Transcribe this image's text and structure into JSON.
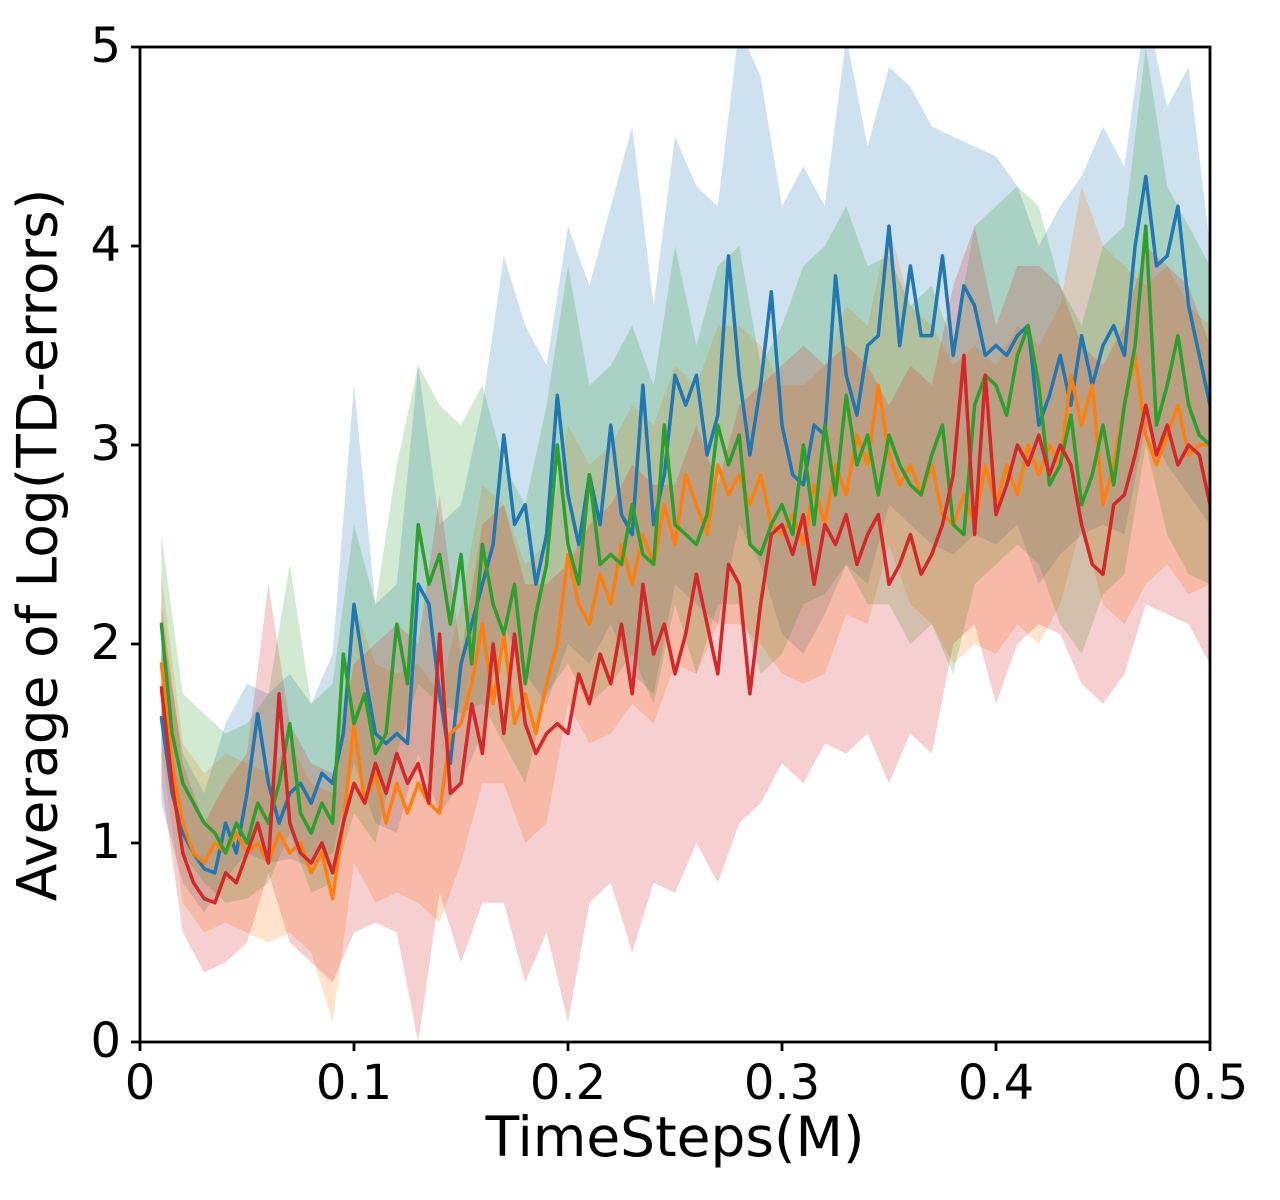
{
  "figure": {
    "background_color": "#ffffff",
    "spine_color": "#000000",
    "tick_color": "#000000"
  },
  "chart_data": {
    "type": "line",
    "title": "",
    "xlabel": "TimeSteps(M)",
    "ylabel": "Average of Log(TD-errors)",
    "xlim": [
      0,
      0.5
    ],
    "ylim": [
      0,
      5
    ],
    "xticks": [
      0,
      0.1,
      0.2,
      0.3,
      0.4,
      0.5
    ],
    "xtick_labels": [
      "0",
      "0.1",
      "0.2",
      "0.3",
      "0.4",
      "0.5"
    ],
    "yticks": [
      0,
      1,
      2,
      3,
      4,
      5
    ],
    "ytick_labels": [
      "0",
      "1",
      "2",
      "3",
      "4",
      "5"
    ],
    "grid": false,
    "legend": "none",
    "x_start": 0.01,
    "x_step": 0.005,
    "band_x_start": 0.01,
    "band_x_step": 0.01,
    "band_alpha": 0.22,
    "series": [
      {
        "name": "series-blue",
        "color": "#1f77b4",
        "mean": [
          1.63,
          1.25,
          1.05,
          0.95,
          0.87,
          0.85,
          1.1,
          0.95,
          1.25,
          1.65,
          1.3,
          1.1,
          1.25,
          1.3,
          1.2,
          1.35,
          1.3,
          1.55,
          2.2,
          1.85,
          1.55,
          1.5,
          1.55,
          1.5,
          2.3,
          2.2,
          1.75,
          1.4,
          1.9,
          2.1,
          2.3,
          2.5,
          3.05,
          2.6,
          2.7,
          2.3,
          2.55,
          3.25,
          2.75,
          2.5,
          2.85,
          2.6,
          3.1,
          2.65,
          2.55,
          3.3,
          2.6,
          2.85,
          3.35,
          3.2,
          3.35,
          2.95,
          3.15,
          3.95,
          3.35,
          2.95,
          3.3,
          3.77,
          3.1,
          2.85,
          2.8,
          3.1,
          3.05,
          3.85,
          3.35,
          3.15,
          3.5,
          3.55,
          4.1,
          3.5,
          3.9,
          3.55,
          3.55,
          3.95,
          3.45,
          3.8,
          3.7,
          3.45,
          3.5,
          3.45,
          3.55,
          3.6,
          3.1,
          3.25,
          3.45,
          3.2,
          3.55,
          3.3,
          3.5,
          3.6,
          3.45,
          4.0,
          4.35,
          3.9,
          3.95,
          4.2,
          3.7,
          3.45,
          3.2
        ],
        "band_low": [
          1.2,
          0.8,
          0.65,
          0.82,
          0.95,
          0.9,
          0.92,
          0.88,
          0.95,
          1.4,
          1.1,
          1.05,
          1.45,
          1.15,
          1.3,
          1.55,
          2.1,
          1.85,
          1.7,
          2.0,
          1.9,
          2.1,
          1.85,
          1.75,
          2.3,
          2.2,
          2.1,
          2.6,
          2.4,
          2.05,
          1.95,
          2.15,
          2.4,
          2.3,
          2.7,
          2.6,
          2.5,
          2.45,
          2.55,
          2.5,
          2.6,
          2.3,
          2.45,
          2.55,
          2.6,
          2.55,
          3.1,
          2.9,
          2.75,
          2.6
        ],
        "band_high": [
          2.1,
          1.45,
          1.25,
          1.6,
          1.8,
          1.75,
          1.85,
          1.7,
          1.95,
          3.3,
          2.2,
          2.3,
          3.4,
          2.6,
          2.7,
          3.2,
          3.95,
          3.6,
          3.4,
          4.1,
          3.8,
          4.2,
          4.6,
          3.7,
          4.55,
          4.3,
          4.2,
          5.1,
          4.85,
          4.2,
          4.4,
          4.2,
          5.05,
          4.5,
          4.9,
          4.8,
          4.6,
          4.55,
          4.5,
          4.45,
          4.3,
          4.0,
          4.2,
          4.35,
          4.6,
          4.4,
          5.2,
          4.7,
          4.9,
          4.0
        ]
      },
      {
        "name": "series-orange",
        "color": "#ff7f0e",
        "mean": [
          1.9,
          1.4,
          1.1,
          0.95,
          0.9,
          1.0,
          0.95,
          1.05,
          0.95,
          1.0,
          0.9,
          1.05,
          0.95,
          1.0,
          0.85,
          0.95,
          0.72,
          1.1,
          1.6,
          1.2,
          1.35,
          1.1,
          1.3,
          1.15,
          1.3,
          1.2,
          1.15,
          1.55,
          1.6,
          1.8,
          2.1,
          1.7,
          2.05,
          1.6,
          1.75,
          1.55,
          1.8,
          2.0,
          2.45,
          2.2,
          2.1,
          2.35,
          2.2,
          2.5,
          2.3,
          2.55,
          2.4,
          2.7,
          2.5,
          2.85,
          2.7,
          2.55,
          2.9,
          2.75,
          2.85,
          2.7,
          2.85,
          2.6,
          2.55,
          2.65,
          2.5,
          2.8,
          2.6,
          2.9,
          2.75,
          3.05,
          2.9,
          3.3,
          2.95,
          2.8,
          2.9,
          2.75,
          2.9,
          2.65,
          2.6,
          2.75,
          2.6,
          2.9,
          2.7,
          2.9,
          2.75,
          3.0,
          2.85,
          3.0,
          2.9,
          3.35,
          3.1,
          3.3,
          2.7,
          2.9,
          3.2,
          3.45,
          3.05,
          2.9,
          3.05,
          3.2,
          2.95,
          3.0,
          3.0
        ],
        "band_low": [
          1.45,
          0.7,
          0.55,
          0.6,
          0.55,
          0.5,
          0.55,
          0.45,
          0.1,
          0.9,
          0.7,
          0.75,
          0.7,
          0.6,
          0.9,
          1.3,
          1.3,
          1.0,
          1.1,
          1.7,
          1.5,
          1.55,
          1.7,
          1.6,
          1.9,
          1.85,
          2.1,
          2.1,
          2.0,
          1.85,
          1.8,
          1.85,
          2.15,
          2.1,
          2.5,
          2.2,
          2.1,
          1.9,
          2.0,
          1.95,
          2.1,
          2.0,
          2.2,
          2.6,
          2.2,
          2.1,
          2.3,
          2.4,
          2.25,
          2.3
        ],
        "band_high": [
          2.35,
          1.5,
          1.35,
          1.45,
          1.4,
          1.35,
          1.5,
          1.3,
          1.25,
          2.2,
          1.9,
          1.85,
          1.9,
          1.75,
          2.2,
          2.8,
          2.7,
          2.4,
          2.5,
          3.1,
          2.9,
          3.0,
          3.2,
          3.1,
          3.4,
          3.3,
          3.6,
          3.6,
          3.5,
          3.3,
          3.3,
          3.4,
          3.7,
          3.6,
          4.1,
          3.7,
          3.6,
          3.4,
          3.5,
          3.4,
          3.6,
          3.5,
          3.7,
          4.3,
          4.0,
          3.9,
          3.8,
          3.9,
          3.7,
          3.6
        ]
      },
      {
        "name": "series-green",
        "color": "#2ca02c",
        "mean": [
          2.1,
          1.55,
          1.3,
          1.2,
          1.1,
          1.05,
          0.95,
          1.1,
          1.0,
          1.2,
          1.1,
          1.3,
          1.6,
          1.15,
          1.05,
          1.2,
          1.1,
          1.95,
          1.6,
          1.75,
          1.45,
          1.55,
          2.1,
          1.8,
          2.6,
          2.3,
          2.45,
          2.1,
          2.45,
          1.9,
          2.5,
          2.2,
          2.05,
          2.3,
          1.8,
          2.15,
          2.4,
          3.0,
          2.5,
          2.3,
          2.85,
          2.4,
          2.45,
          2.4,
          2.7,
          2.45,
          2.4,
          3.1,
          2.6,
          2.55,
          2.5,
          2.65,
          3.1,
          2.9,
          3.05,
          2.5,
          2.45,
          2.6,
          2.7,
          2.55,
          3.0,
          2.6,
          3.1,
          2.75,
          3.25,
          2.9,
          3.05,
          2.75,
          3.05,
          2.9,
          2.8,
          2.75,
          2.95,
          3.1,
          2.6,
          2.55,
          3.2,
          3.35,
          3.3,
          3.15,
          3.45,
          3.6,
          3.3,
          2.8,
          2.9,
          3.15,
          2.7,
          2.85,
          3.1,
          2.8,
          3.2,
          3.5,
          4.1,
          3.1,
          3.3,
          3.55,
          3.2,
          3.05,
          3.0
        ],
        "band_low": [
          1.6,
          0.95,
          0.8,
          0.7,
          0.72,
          0.8,
          1.05,
          0.75,
          0.8,
          1.15,
          1.0,
          1.45,
          1.8,
          1.7,
          1.65,
          1.7,
          1.5,
          1.3,
          1.75,
          1.9,
          1.7,
          1.8,
          1.95,
          1.7,
          2.2,
          1.85,
          2.2,
          2.2,
          1.85,
          1.95,
          2.2,
          2.25,
          2.4,
          2.2,
          2.2,
          2.0,
          2.1,
          1.85,
          2.3,
          2.4,
          2.5,
          2.4,
          2.1,
          1.95,
          2.25,
          2.35,
          3.0,
          2.55,
          2.35,
          2.3
        ],
        "band_high": [
          2.55,
          1.75,
          1.65,
          1.55,
          1.6,
          1.75,
          2.4,
          1.7,
          1.8,
          2.6,
          2.2,
          2.9,
          3.4,
          3.2,
          3.1,
          3.3,
          2.9,
          2.7,
          3.2,
          3.9,
          3.3,
          3.4,
          3.6,
          3.3,
          4.0,
          3.5,
          3.9,
          4.0,
          3.4,
          3.6,
          3.9,
          4.0,
          4.2,
          3.9,
          3.95,
          3.7,
          3.8,
          3.5,
          4.1,
          4.2,
          4.3,
          4.2,
          3.8,
          3.6,
          4.0,
          4.1,
          5.0,
          4.3,
          4.1,
          3.9
        ]
      },
      {
        "name": "series-red",
        "color": "#d62728",
        "mean": [
          1.78,
          1.3,
          0.95,
          0.8,
          0.72,
          0.7,
          0.85,
          0.8,
          0.95,
          1.1,
          0.9,
          1.75,
          1.1,
          0.95,
          0.9,
          1.0,
          0.85,
          1.1,
          1.3,
          1.2,
          1.4,
          1.25,
          1.45,
          1.3,
          1.4,
          1.2,
          2.05,
          1.25,
          1.3,
          1.7,
          1.45,
          2.0,
          1.55,
          2.05,
          1.6,
          1.45,
          1.55,
          1.6,
          1.55,
          1.85,
          1.7,
          1.95,
          1.8,
          2.1,
          1.75,
          2.3,
          1.95,
          2.1,
          1.85,
          2.05,
          2.35,
          2.1,
          1.85,
          2.4,
          2.3,
          1.75,
          2.2,
          2.55,
          2.6,
          2.45,
          2.65,
          2.3,
          2.6,
          2.5,
          2.65,
          2.4,
          2.55,
          2.65,
          2.3,
          2.4,
          2.55,
          2.35,
          2.45,
          2.6,
          2.85,
          3.45,
          2.55,
          3.35,
          2.65,
          2.8,
          3.0,
          2.9,
          3.05,
          2.85,
          3.0,
          2.9,
          2.6,
          2.4,
          2.35,
          2.7,
          2.75,
          2.95,
          3.2,
          2.95,
          3.1,
          2.9,
          3.0,
          2.95,
          2.7
        ],
        "band_low": [
          1.3,
          0.55,
          0.35,
          0.4,
          0.5,
          0.85,
          0.5,
          0.4,
          0.3,
          0.55,
          0.6,
          0.55,
          0.0,
          0.75,
          0.4,
          0.7,
          0.7,
          0.3,
          0.55,
          0.1,
          0.7,
          0.8,
          0.45,
          0.8,
          0.75,
          1.0,
          0.8,
          1.1,
          1.2,
          1.4,
          1.3,
          1.5,
          1.45,
          1.55,
          1.3,
          1.55,
          1.45,
          2.0,
          2.1,
          1.7,
          2.0,
          2.1,
          2.05,
          1.8,
          1.7,
          1.85,
          2.2,
          2.15,
          2.1,
          1.9
        ],
        "band_high": [
          2.2,
          1.4,
          1.1,
          1.3,
          1.45,
          2.3,
          1.6,
          1.4,
          1.35,
          1.9,
          2.0,
          2.1,
          2.0,
          2.75,
          1.95,
          2.6,
          2.7,
          2.3,
          2.3,
          2.4,
          2.6,
          2.7,
          2.9,
          2.8,
          2.8,
          3.1,
          2.8,
          3.2,
          3.3,
          3.4,
          3.5,
          3.4,
          3.5,
          3.4,
          3.2,
          3.4,
          3.3,
          3.8,
          4.1,
          3.6,
          3.9,
          3.9,
          3.8,
          3.5,
          3.4,
          3.6,
          4.0,
          3.9,
          3.8,
          3.5
        ]
      }
    ]
  }
}
